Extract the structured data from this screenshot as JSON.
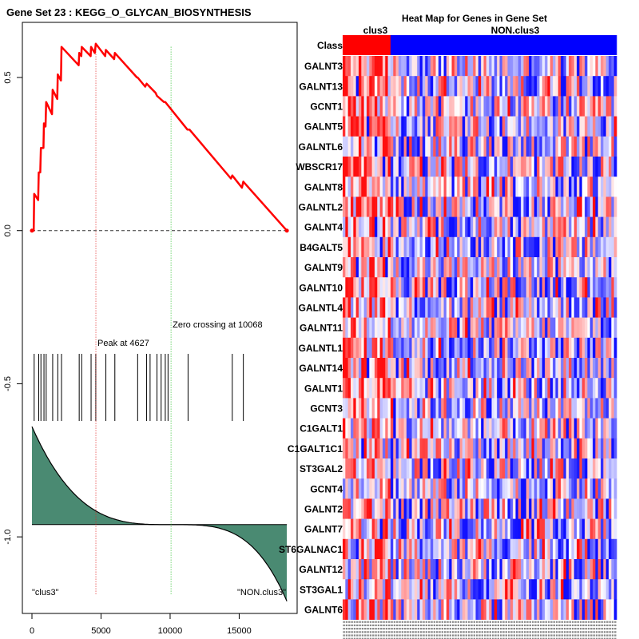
{
  "chart_data": [
    {
      "type": "line",
      "title": "Gene Set  23 : KEGG_O_GLYCAN_BIOSYNTHESIS",
      "xlim": [
        0,
        18500
      ],
      "ylim": [
        -1.25,
        0.68
      ],
      "xticks": [
        {
          "v": 0,
          "label": "0"
        },
        {
          "v": 5000,
          "label": "5000"
        },
        {
          "v": 10000,
          "label": "10000"
        },
        {
          "v": 15000,
          "label": "15000"
        }
      ],
      "yticks": [
        {
          "v": 0.5,
          "label": "0.5"
        },
        {
          "v": 0.0,
          "label": "0.0"
        },
        {
          "v": -0.5,
          "label": "-0.5"
        },
        {
          "v": -1.0,
          "label": "-1.0"
        }
      ],
      "running_es": [
        [
          0,
          0.0
        ],
        [
          130,
          0.0
        ],
        [
          160,
          0.12
        ],
        [
          450,
          0.1
        ],
        [
          490,
          0.19
        ],
        [
          600,
          0.19
        ],
        [
          650,
          0.27
        ],
        [
          830,
          0.27
        ],
        [
          870,
          0.35
        ],
        [
          980,
          0.34
        ],
        [
          1030,
          0.42
        ],
        [
          1450,
          0.38
        ],
        [
          1500,
          0.46
        ],
        [
          1830,
          0.43
        ],
        [
          1870,
          0.51
        ],
        [
          2100,
          0.49
        ],
        [
          2140,
          0.6
        ],
        [
          3380,
          0.54
        ],
        [
          3420,
          0.58
        ],
        [
          3570,
          0.57
        ],
        [
          3600,
          0.6
        ],
        [
          4250,
          0.57
        ],
        [
          4280,
          0.6
        ],
        [
          4550,
          0.58
        ],
        [
          4620,
          0.61
        ],
        [
          5300,
          0.57
        ],
        [
          5350,
          0.59
        ],
        [
          5950,
          0.56
        ],
        [
          6000,
          0.58
        ],
        [
          7600,
          0.5
        ],
        [
          7650,
          0.5
        ],
        [
          8200,
          0.47
        ],
        [
          8300,
          0.48
        ],
        [
          8950,
          0.45
        ],
        [
          9050,
          0.44
        ],
        [
          9550,
          0.42
        ],
        [
          9650,
          0.42
        ],
        [
          11250,
          0.33
        ],
        [
          11400,
          0.33
        ],
        [
          14400,
          0.17
        ],
        [
          14500,
          0.18
        ],
        [
          15200,
          0.14
        ],
        [
          15300,
          0.16
        ],
        [
          18450,
          0.0
        ]
      ],
      "baseline": 0.0,
      "peak": {
        "x": 4627,
        "label": "Peak at 4627"
      },
      "zero_crossing": {
        "x": 10068,
        "label": "Zero crossing at 10068"
      },
      "hit_positions": [
        160,
        490,
        650,
        870,
        1030,
        1500,
        1870,
        2140,
        3420,
        3600,
        4280,
        4620,
        5350,
        6000,
        7650,
        8300,
        8550,
        9050,
        9350,
        9650,
        9850,
        11300,
        14500,
        15300
      ],
      "ranked_metric": {
        "start": -0.64,
        "mid": -0.96,
        "end": -1.21,
        "zero_at": 10068
      },
      "labels": {
        "left": "\"clus3\"",
        "right": "\"NON.clus3\""
      }
    },
    {
      "type": "heatmap",
      "title": "Heat Map for Genes in Gene Set",
      "class_label": "Class",
      "groups": [
        {
          "name": "clus3",
          "count": 18,
          "color": "#ff0000"
        },
        {
          "name": "NON.clus3",
          "count": 85,
          "color": "#0000ff"
        }
      ],
      "genes": [
        "GALNT3",
        "GALNT13",
        "GCNT1",
        "GALNT5",
        "GALNTL6",
        "WBSCR17",
        "GALNT8",
        "GALNTL2",
        "GALNT4",
        "B4GALT5",
        "GALNT9",
        "GALNT10",
        "GALNTL4",
        "GALNT11",
        "GALNTL1",
        "GALNT14",
        "GALNT1",
        "GCNT3",
        "C1GALT1",
        "C1GALT1C1",
        "ST3GAL2",
        "GCNT4",
        "GALNT2",
        "GALNT7",
        "ST6GALNAC1",
        "GALNT12",
        "ST3GAL1",
        "GALNT6"
      ],
      "value_range": [
        -1,
        1
      ],
      "colors": {
        "high": "#ff0000",
        "mid": "#ffffff",
        "low": "#0000ff"
      }
    }
  ]
}
